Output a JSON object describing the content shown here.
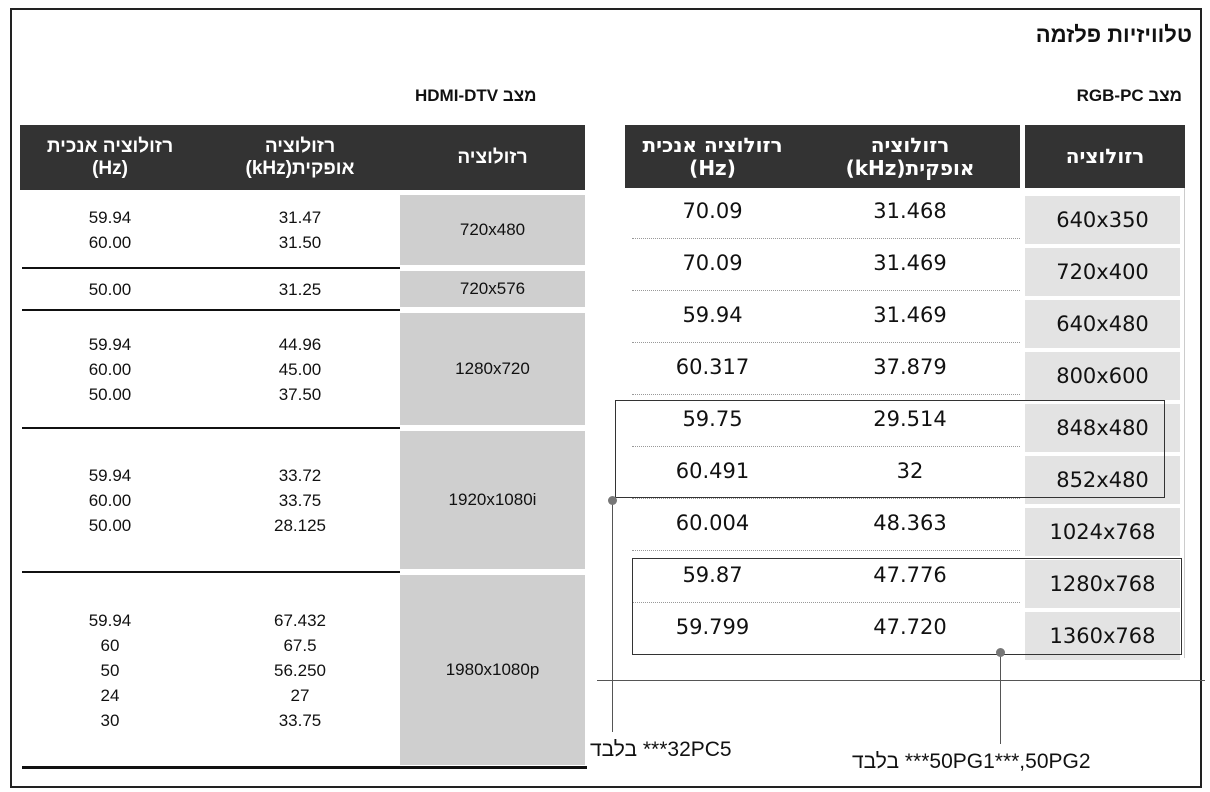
{
  "title": "טלוויזיות פלזמה",
  "hdmi": {
    "caption": "מצב HDMI-DTV",
    "headers": [
      [
        "רזולוציה"
      ],
      [
        "רזולוציה",
        "אופקית(kHz)"
      ],
      [
        "רזולוציה אנכית",
        "(Hz)"
      ]
    ],
    "groups": [
      {
        "resolution": "720x480",
        "horizontal": [
          "31.47",
          "31.50"
        ],
        "vertical": [
          "59.94",
          "60.00"
        ]
      },
      {
        "resolution": "720x576",
        "horizontal": [
          "31.25"
        ],
        "vertical": [
          "50.00"
        ]
      },
      {
        "resolution": "1280x720",
        "horizontal": [
          "44.96",
          "45.00",
          "37.50"
        ],
        "vertical": [
          "59.94",
          "60.00",
          "50.00"
        ]
      },
      {
        "resolution": "1920x1080i",
        "horizontal": [
          "33.72",
          "33.75",
          "28.125"
        ],
        "vertical": [
          "59.94",
          "60.00",
          "50.00"
        ]
      },
      {
        "resolution": "1980x1080p",
        "horizontal": [
          "67.432",
          "67.5",
          "56.250",
          "27",
          "33.75"
        ],
        "vertical": [
          "59.94",
          "60",
          "50",
          "24",
          "30"
        ]
      }
    ]
  },
  "rgb": {
    "caption": "מצב RGB-PC",
    "headers": [
      [
        "רזולוציה"
      ],
      [
        "רזולוציה",
        "אופקית(kHz)"
      ],
      [
        "רזולוציה אנכית",
        "(Hz)"
      ]
    ],
    "rows": [
      [
        "640x350",
        "31.468",
        "70.09"
      ],
      [
        "720x400",
        "31.469",
        "70.09"
      ],
      [
        "640x480",
        "31.469",
        "59.94"
      ],
      [
        "800x600",
        "37.879",
        "60.317"
      ],
      [
        "848x480",
        "29.514",
        "59.75"
      ],
      [
        "852x480",
        "32",
        "60.491"
      ],
      [
        "1024x768",
        "48.363",
        "60.004"
      ],
      [
        "1280x768",
        "47.776",
        "59.87"
      ],
      [
        "1360x768",
        "47.720",
        "59.799"
      ]
    ]
  },
  "notes": [
    "32PC5*** בלבד",
    "50PG1***,50PG2*** בלבד"
  ]
}
